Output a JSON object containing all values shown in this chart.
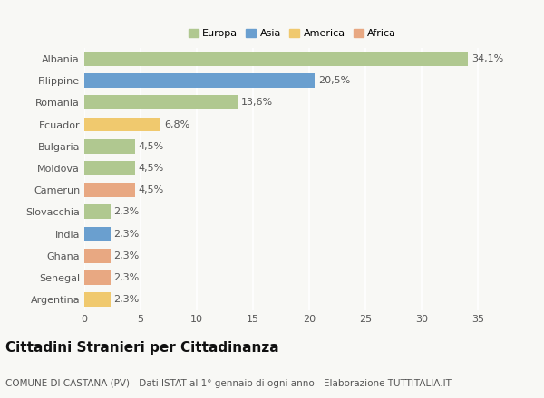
{
  "countries": [
    "Albania",
    "Filippine",
    "Romania",
    "Ecuador",
    "Bulgaria",
    "Moldova",
    "Camerun",
    "Slovacchia",
    "India",
    "Ghana",
    "Senegal",
    "Argentina"
  ],
  "values": [
    34.1,
    20.5,
    13.6,
    6.8,
    4.5,
    4.5,
    4.5,
    2.3,
    2.3,
    2.3,
    2.3,
    2.3
  ],
  "labels": [
    "34,1%",
    "20,5%",
    "13,6%",
    "6,8%",
    "4,5%",
    "4,5%",
    "4,5%",
    "2,3%",
    "2,3%",
    "2,3%",
    "2,3%",
    "2,3%"
  ],
  "colors": [
    "#adc eighteen",
    "#6a9fcf",
    "#a8c08a",
    "#f0c96e",
    "#a8c08a",
    "#a8c08a",
    "#e8a882",
    "#a8c08a",
    "#6a9fcf",
    "#e8a882",
    "#e8a882",
    "#f0c96e"
  ],
  "bar_colors": [
    "#b0c890",
    "#6a9fcf",
    "#b0c890",
    "#f0c96e",
    "#b0c890",
    "#b0c890",
    "#e8a882",
    "#b0c890",
    "#6a9fcf",
    "#e8a882",
    "#e8a882",
    "#f0c96e"
  ],
  "legend_labels": [
    "Europa",
    "Asia",
    "America",
    "Africa"
  ],
  "legend_colors": [
    "#b0c890",
    "#6a9fcf",
    "#f0c96e",
    "#e8a882"
  ],
  "title": "Cittadini Stranieri per Cittadinanza",
  "subtitle": "COMUNE DI CASTANA (PV) - Dati ISTAT al 1° gennaio di ogni anno - Elaborazione TUTTITALIA.IT",
  "xlim": [
    0,
    37
  ],
  "background_color": "#f8f8f5",
  "grid_color": "#ffffff",
  "title_fontsize": 11,
  "subtitle_fontsize": 7.5,
  "label_fontsize": 8,
  "tick_fontsize": 8,
  "bar_height": 0.65
}
